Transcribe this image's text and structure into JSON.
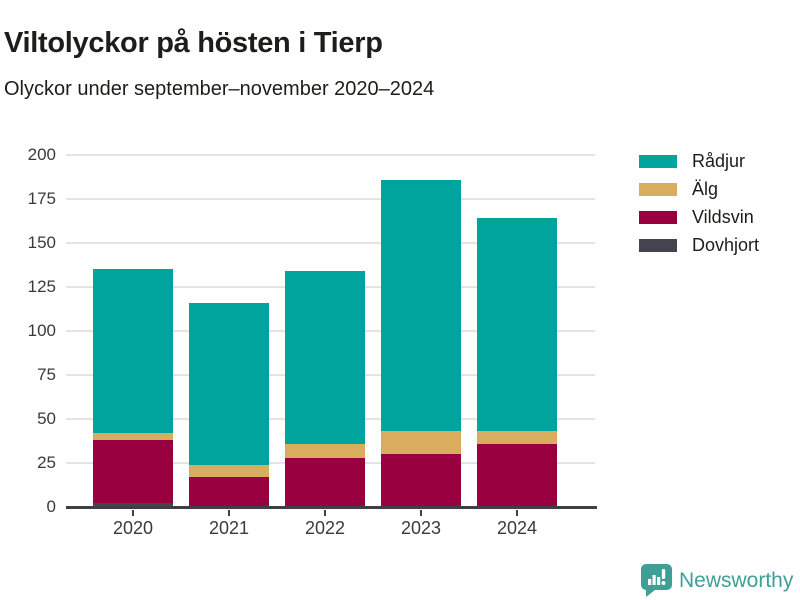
{
  "header": {
    "title": "Viltolyckor på hösten i Tierp",
    "subtitle": "Olyckor under september–november 2020–2024"
  },
  "chart_data": {
    "type": "bar",
    "stacked": true,
    "title": "Viltolyckor på hösten i Tierp",
    "subtitle": "Olyckor under september–november 2020–2024",
    "categories": [
      "2020",
      "2021",
      "2022",
      "2023",
      "2024"
    ],
    "series": [
      {
        "name": "Rådjur",
        "color": "#00a49c",
        "values": [
          93,
          92,
          98,
          143,
          121
        ]
      },
      {
        "name": "Älg",
        "color": "#d9ad5e",
        "values": [
          4,
          7,
          8,
          13,
          7
        ]
      },
      {
        "name": "Vildsvin",
        "color": "#990040",
        "values": [
          36,
          17,
          28,
          30,
          36
        ]
      },
      {
        "name": "Dovhjort",
        "color": "#45444e",
        "values": [
          2,
          0,
          0,
          0,
          0
        ]
      }
    ],
    "totals": [
      135,
      116,
      134,
      186,
      164
    ],
    "xlabel": "",
    "ylabel": "",
    "ylim": [
      0,
      200
    ],
    "yticks": [
      0,
      25,
      50,
      75,
      100,
      125,
      150,
      175,
      200
    ],
    "grid": true,
    "legend_position": "right"
  },
  "colors": {
    "grid": "#e4e4e4",
    "axis": "#3f3f44",
    "tick_text": "#3a3a3a",
    "brand": "#3f9f97"
  },
  "footer": {
    "brand": "Newsworthy"
  }
}
